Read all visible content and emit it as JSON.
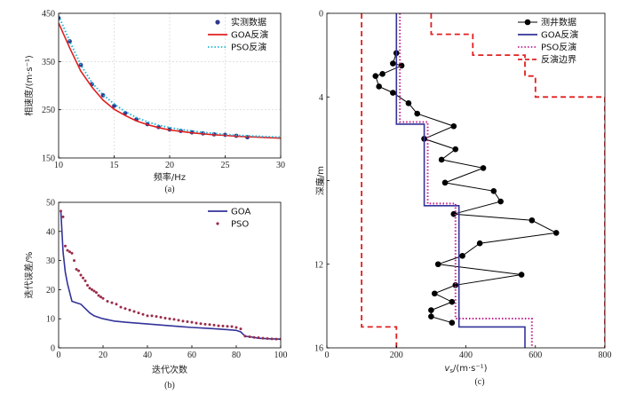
{
  "chart_data": [
    {
      "id": "a",
      "type": "line",
      "caption": "(a)",
      "xlabel": "频率/Hz",
      "ylabel": "相速度/(m·s⁻¹)",
      "xlim": [
        10,
        30
      ],
      "ylim": [
        150,
        450
      ],
      "xticks": [
        10,
        15,
        20,
        25,
        30
      ],
      "yticks": [
        150,
        250,
        350,
        450
      ],
      "grid": true,
      "legend_position": "top-right",
      "series": [
        {
          "name": "实测数据",
          "style": "points",
          "color": "#2e3a8c",
          "x": [
            10,
            11,
            12,
            13,
            14,
            15,
            16,
            17,
            18,
            19,
            20,
            21,
            22,
            23,
            24,
            25,
            26,
            27
          ],
          "y": [
            440,
            392,
            343,
            303,
            280,
            258,
            243,
            230,
            220,
            214,
            209,
            206,
            203,
            201,
            199,
            198,
            196,
            193
          ]
        },
        {
          "name": "GOA反演",
          "style": "solid",
          "color": "#e02020",
          "x": [
            10,
            11,
            12,
            13,
            14,
            15,
            16,
            17,
            18,
            19,
            20,
            21,
            22,
            23,
            24,
            25,
            26,
            27,
            28,
            29,
            30
          ],
          "y": [
            430,
            378,
            330,
            297,
            270,
            251,
            238,
            227,
            219,
            213,
            208,
            205,
            202,
            200,
            198,
            197,
            195,
            194,
            193,
            192,
            191
          ]
        },
        {
          "name": "PSO反演",
          "style": "dotted",
          "color": "#22b5d6",
          "x": [
            10,
            11,
            12,
            13,
            14,
            15,
            16,
            17,
            18,
            19,
            20,
            21,
            22,
            23,
            24,
            25,
            26,
            27,
            28,
            29,
            30
          ],
          "y": [
            445,
            392,
            343,
            306,
            281,
            262,
            246,
            234,
            225,
            218,
            213,
            209,
            206,
            203,
            201,
            199,
            197,
            196,
            195,
            194,
            193
          ]
        }
      ]
    },
    {
      "id": "b",
      "type": "line",
      "caption": "(b)",
      "xlabel": "迭代次数",
      "ylabel": "迭代误差/%",
      "xlim": [
        0,
        100
      ],
      "ylim": [
        0,
        50
      ],
      "xticks": [
        0,
        20,
        40,
        60,
        80,
        100
      ],
      "yticks": [
        0,
        10,
        20,
        30,
        40,
        50
      ],
      "legend_position": "top-right",
      "series": [
        {
          "name": "GOA",
          "style": "solid",
          "color": "#33339a",
          "x": [
            1,
            2,
            3,
            4,
            5,
            6,
            8,
            10,
            12,
            14,
            16,
            18,
            20,
            25,
            30,
            35,
            40,
            45,
            50,
            55,
            60,
            65,
            70,
            75,
            80,
            82,
            84,
            86,
            88,
            90,
            95,
            100
          ],
          "y": [
            47,
            33,
            26,
            22,
            19,
            16,
            15.5,
            15,
            13.5,
            12,
            11,
            10.5,
            10,
            9.2,
            8.8,
            8.5,
            8.2,
            7.9,
            7.6,
            7.3,
            7,
            6.8,
            6.6,
            6.3,
            6,
            5.5,
            4,
            3.8,
            3.6,
            3.3,
            3.1,
            3
          ]
        },
        {
          "name": "PSO",
          "style": "points",
          "color": "#9a2c4a",
          "x": [
            1,
            2,
            3,
            4,
            5,
            6,
            7,
            8,
            9,
            10,
            11,
            12,
            13,
            14,
            15,
            16,
            17,
            18,
            19,
            20,
            22,
            24,
            26,
            28,
            30,
            32,
            34,
            36,
            38,
            40,
            42,
            44,
            46,
            48,
            50,
            52,
            54,
            56,
            58,
            60,
            62,
            64,
            66,
            68,
            70,
            72,
            74,
            76,
            78,
            80,
            82,
            84,
            86,
            88,
            90,
            92,
            94,
            96,
            98,
            100
          ],
          "y": [
            47,
            45,
            35,
            33.5,
            33,
            32.5,
            30,
            27,
            26.5,
            25,
            24,
            23,
            21.5,
            20.5,
            20,
            19.5,
            19,
            18,
            17.5,
            17,
            16,
            15.5,
            15,
            14,
            13.5,
            13,
            12.5,
            12,
            11.5,
            11,
            11,
            10.8,
            10.5,
            10.2,
            10,
            9.8,
            9.5,
            9.2,
            9,
            8.8,
            8.5,
            8.3,
            8.1,
            8,
            7.8,
            7.6,
            7.5,
            7.4,
            7.3,
            7,
            6.5,
            4,
            3.8,
            3.6,
            3.5,
            3.3,
            3.2,
            3.1,
            3,
            3
          ]
        }
      ]
    },
    {
      "id": "c",
      "type": "line",
      "caption": "(c)",
      "xlabel": "vs/(m·s⁻¹)",
      "xlabel_var": "v",
      "xlabel_sub": "s",
      "xlabel_unit": "/(m·s⁻¹)",
      "ylabel": "深度/m",
      "xlim": [
        0,
        800
      ],
      "ylim": [
        0,
        16
      ],
      "y_inverted": true,
      "xticks": [
        0,
        200,
        400,
        600,
        800
      ],
      "yticks": [
        0,
        4,
        8,
        12,
        16
      ],
      "legend_position": "top-right",
      "series": [
        {
          "name": "测井数据",
          "style": "line-points",
          "color": "#000000",
          "x": [
            200,
            190,
            215,
            160,
            140,
            150,
            190,
            235,
            260,
            365,
            280,
            370,
            330,
            450,
            340,
            480,
            500,
            365,
            590,
            660,
            440,
            390,
            320,
            560,
            370,
            310,
            360,
            300,
            300,
            360
          ],
          "y": [
            1.9,
            2.4,
            2.5,
            2.9,
            3.0,
            3.5,
            3.8,
            4.3,
            4.8,
            5.4,
            6.0,
            6.5,
            7.0,
            7.4,
            8.1,
            8.5,
            9.0,
            9.6,
            9.9,
            10.5,
            11.0,
            11.6,
            12.0,
            12.5,
            13.0,
            13.4,
            13.8,
            14.2,
            14.5,
            14.8
          ]
        },
        {
          "name": "GOA反演",
          "style": "step",
          "color": "#33339a",
          "x": [
            200,
            200,
            280,
            280,
            380,
            380,
            570,
            570
          ],
          "y": [
            0,
            5.3,
            5.3,
            9.2,
            9.2,
            15,
            15,
            16
          ]
        },
        {
          "name": "PSO反演",
          "style": "step-dotted",
          "color": "#c0208a",
          "x": [
            210,
            210,
            290,
            290,
            370,
            370,
            590,
            590
          ],
          "y": [
            0,
            5.2,
            5.2,
            9.1,
            9.1,
            14.6,
            14.6,
            16
          ]
        },
        {
          "name": "反演边界",
          "style": "step-dashed",
          "color": "#e02020",
          "boundary": "lower",
          "x": [
            100,
            100,
            130,
            130,
            200,
            200
          ],
          "y": [
            0,
            15,
            15,
            15,
            15,
            16
          ]
        },
        {
          "name": "反演边界",
          "style": "step-dashed",
          "color": "#e02020",
          "boundary": "upper",
          "x": [
            300,
            300,
            420,
            420,
            570,
            570,
            600,
            600,
            800,
            800
          ],
          "y": [
            0,
            1,
            1,
            2,
            2,
            3,
            3,
            4,
            4,
            16
          ]
        }
      ]
    }
  ]
}
